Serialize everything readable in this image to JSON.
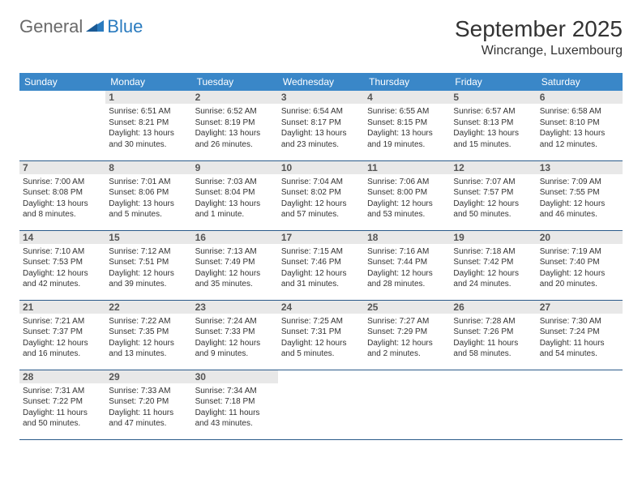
{
  "logo": {
    "general": "General",
    "blue": "Blue"
  },
  "header": {
    "title": "September 2025",
    "location": "Wincrange, Luxembourg"
  },
  "colors": {
    "header_bg": "#3a87c8",
    "header_text": "#ffffff",
    "daynum_bg": "#e8e8e8",
    "daynum_text": "#555555",
    "border": "#2a5a8a",
    "logo_gray": "#6a6a6a",
    "logo_blue": "#2a7bbf"
  },
  "weekdays": [
    "Sunday",
    "Monday",
    "Tuesday",
    "Wednesday",
    "Thursday",
    "Friday",
    "Saturday"
  ],
  "weeks": [
    [
      {
        "n": "",
        "sunrise": "",
        "sunset": "",
        "daylight": ""
      },
      {
        "n": "1",
        "sunrise": "Sunrise: 6:51 AM",
        "sunset": "Sunset: 8:21 PM",
        "daylight": "Daylight: 13 hours and 30 minutes."
      },
      {
        "n": "2",
        "sunrise": "Sunrise: 6:52 AM",
        "sunset": "Sunset: 8:19 PM",
        "daylight": "Daylight: 13 hours and 26 minutes."
      },
      {
        "n": "3",
        "sunrise": "Sunrise: 6:54 AM",
        "sunset": "Sunset: 8:17 PM",
        "daylight": "Daylight: 13 hours and 23 minutes."
      },
      {
        "n": "4",
        "sunrise": "Sunrise: 6:55 AM",
        "sunset": "Sunset: 8:15 PM",
        "daylight": "Daylight: 13 hours and 19 minutes."
      },
      {
        "n": "5",
        "sunrise": "Sunrise: 6:57 AM",
        "sunset": "Sunset: 8:13 PM",
        "daylight": "Daylight: 13 hours and 15 minutes."
      },
      {
        "n": "6",
        "sunrise": "Sunrise: 6:58 AM",
        "sunset": "Sunset: 8:10 PM",
        "daylight": "Daylight: 13 hours and 12 minutes."
      }
    ],
    [
      {
        "n": "7",
        "sunrise": "Sunrise: 7:00 AM",
        "sunset": "Sunset: 8:08 PM",
        "daylight": "Daylight: 13 hours and 8 minutes."
      },
      {
        "n": "8",
        "sunrise": "Sunrise: 7:01 AM",
        "sunset": "Sunset: 8:06 PM",
        "daylight": "Daylight: 13 hours and 5 minutes."
      },
      {
        "n": "9",
        "sunrise": "Sunrise: 7:03 AM",
        "sunset": "Sunset: 8:04 PM",
        "daylight": "Daylight: 13 hours and 1 minute."
      },
      {
        "n": "10",
        "sunrise": "Sunrise: 7:04 AM",
        "sunset": "Sunset: 8:02 PM",
        "daylight": "Daylight: 12 hours and 57 minutes."
      },
      {
        "n": "11",
        "sunrise": "Sunrise: 7:06 AM",
        "sunset": "Sunset: 8:00 PM",
        "daylight": "Daylight: 12 hours and 53 minutes."
      },
      {
        "n": "12",
        "sunrise": "Sunrise: 7:07 AM",
        "sunset": "Sunset: 7:57 PM",
        "daylight": "Daylight: 12 hours and 50 minutes."
      },
      {
        "n": "13",
        "sunrise": "Sunrise: 7:09 AM",
        "sunset": "Sunset: 7:55 PM",
        "daylight": "Daylight: 12 hours and 46 minutes."
      }
    ],
    [
      {
        "n": "14",
        "sunrise": "Sunrise: 7:10 AM",
        "sunset": "Sunset: 7:53 PM",
        "daylight": "Daylight: 12 hours and 42 minutes."
      },
      {
        "n": "15",
        "sunrise": "Sunrise: 7:12 AM",
        "sunset": "Sunset: 7:51 PM",
        "daylight": "Daylight: 12 hours and 39 minutes."
      },
      {
        "n": "16",
        "sunrise": "Sunrise: 7:13 AM",
        "sunset": "Sunset: 7:49 PM",
        "daylight": "Daylight: 12 hours and 35 minutes."
      },
      {
        "n": "17",
        "sunrise": "Sunrise: 7:15 AM",
        "sunset": "Sunset: 7:46 PM",
        "daylight": "Daylight: 12 hours and 31 minutes."
      },
      {
        "n": "18",
        "sunrise": "Sunrise: 7:16 AM",
        "sunset": "Sunset: 7:44 PM",
        "daylight": "Daylight: 12 hours and 28 minutes."
      },
      {
        "n": "19",
        "sunrise": "Sunrise: 7:18 AM",
        "sunset": "Sunset: 7:42 PM",
        "daylight": "Daylight: 12 hours and 24 minutes."
      },
      {
        "n": "20",
        "sunrise": "Sunrise: 7:19 AM",
        "sunset": "Sunset: 7:40 PM",
        "daylight": "Daylight: 12 hours and 20 minutes."
      }
    ],
    [
      {
        "n": "21",
        "sunrise": "Sunrise: 7:21 AM",
        "sunset": "Sunset: 7:37 PM",
        "daylight": "Daylight: 12 hours and 16 minutes."
      },
      {
        "n": "22",
        "sunrise": "Sunrise: 7:22 AM",
        "sunset": "Sunset: 7:35 PM",
        "daylight": "Daylight: 12 hours and 13 minutes."
      },
      {
        "n": "23",
        "sunrise": "Sunrise: 7:24 AM",
        "sunset": "Sunset: 7:33 PM",
        "daylight": "Daylight: 12 hours and 9 minutes."
      },
      {
        "n": "24",
        "sunrise": "Sunrise: 7:25 AM",
        "sunset": "Sunset: 7:31 PM",
        "daylight": "Daylight: 12 hours and 5 minutes."
      },
      {
        "n": "25",
        "sunrise": "Sunrise: 7:27 AM",
        "sunset": "Sunset: 7:29 PM",
        "daylight": "Daylight: 12 hours and 2 minutes."
      },
      {
        "n": "26",
        "sunrise": "Sunrise: 7:28 AM",
        "sunset": "Sunset: 7:26 PM",
        "daylight": "Daylight: 11 hours and 58 minutes."
      },
      {
        "n": "27",
        "sunrise": "Sunrise: 7:30 AM",
        "sunset": "Sunset: 7:24 PM",
        "daylight": "Daylight: 11 hours and 54 minutes."
      }
    ],
    [
      {
        "n": "28",
        "sunrise": "Sunrise: 7:31 AM",
        "sunset": "Sunset: 7:22 PM",
        "daylight": "Daylight: 11 hours and 50 minutes."
      },
      {
        "n": "29",
        "sunrise": "Sunrise: 7:33 AM",
        "sunset": "Sunset: 7:20 PM",
        "daylight": "Daylight: 11 hours and 47 minutes."
      },
      {
        "n": "30",
        "sunrise": "Sunrise: 7:34 AM",
        "sunset": "Sunset: 7:18 PM",
        "daylight": "Daylight: 11 hours and 43 minutes."
      },
      {
        "n": "",
        "sunrise": "",
        "sunset": "",
        "daylight": ""
      },
      {
        "n": "",
        "sunrise": "",
        "sunset": "",
        "daylight": ""
      },
      {
        "n": "",
        "sunrise": "",
        "sunset": "",
        "daylight": ""
      },
      {
        "n": "",
        "sunrise": "",
        "sunset": "",
        "daylight": ""
      }
    ]
  ]
}
